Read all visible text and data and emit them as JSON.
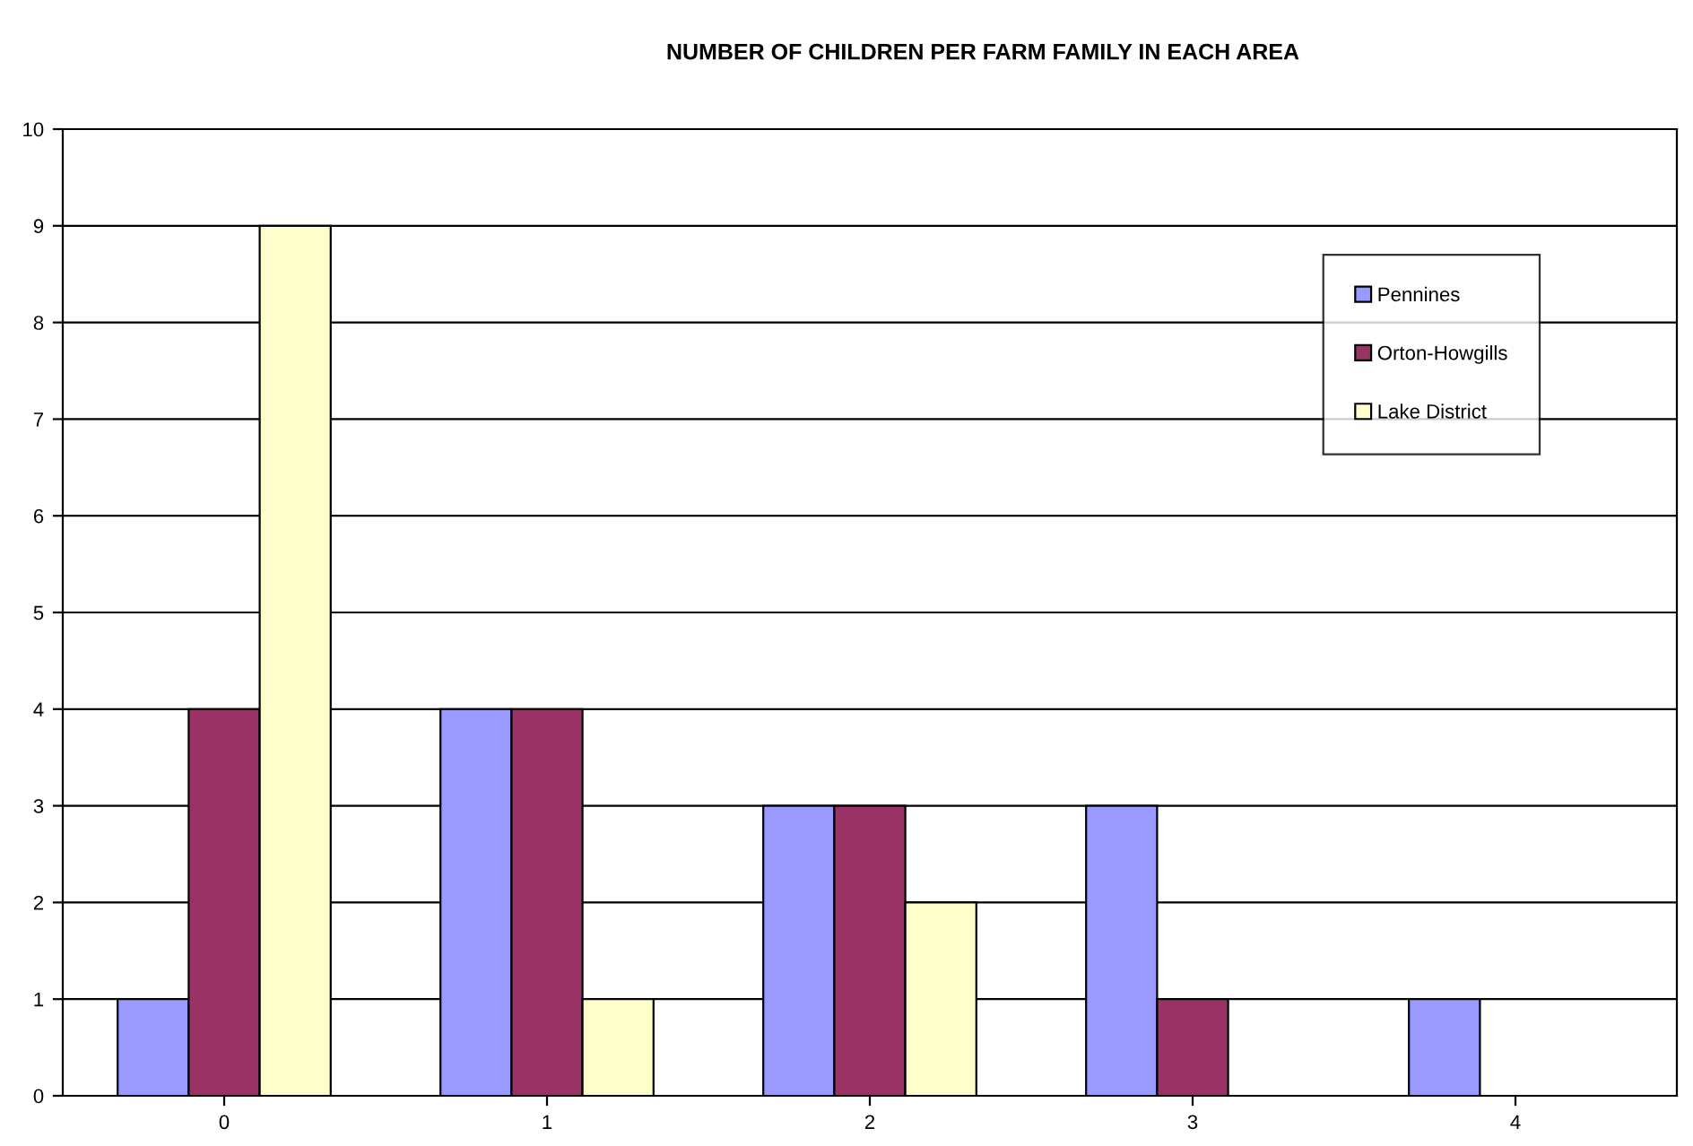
{
  "chart_data": {
    "type": "bar",
    "title": "NUMBER OF CHILDREN PER FARM FAMILY IN EACH AREA",
    "categories": [
      "0",
      "1",
      "2",
      "3",
      "4"
    ],
    "series": [
      {
        "name": "Pennines",
        "color": "#9999ff",
        "values": [
          1,
          4,
          3,
          3,
          1
        ]
      },
      {
        "name": "Orton-Howgills",
        "color": "#993366",
        "values": [
          4,
          4,
          3,
          1,
          null
        ]
      },
      {
        "name": "Lake District",
        "color": "#ffffcc",
        "values": [
          9,
          1,
          2,
          null,
          null
        ]
      }
    ],
    "ylim": [
      0,
      10
    ],
    "yticks": [
      0,
      1,
      2,
      3,
      4,
      5,
      6,
      7,
      8,
      9,
      10
    ],
    "grid": "y",
    "legend": "top right"
  }
}
